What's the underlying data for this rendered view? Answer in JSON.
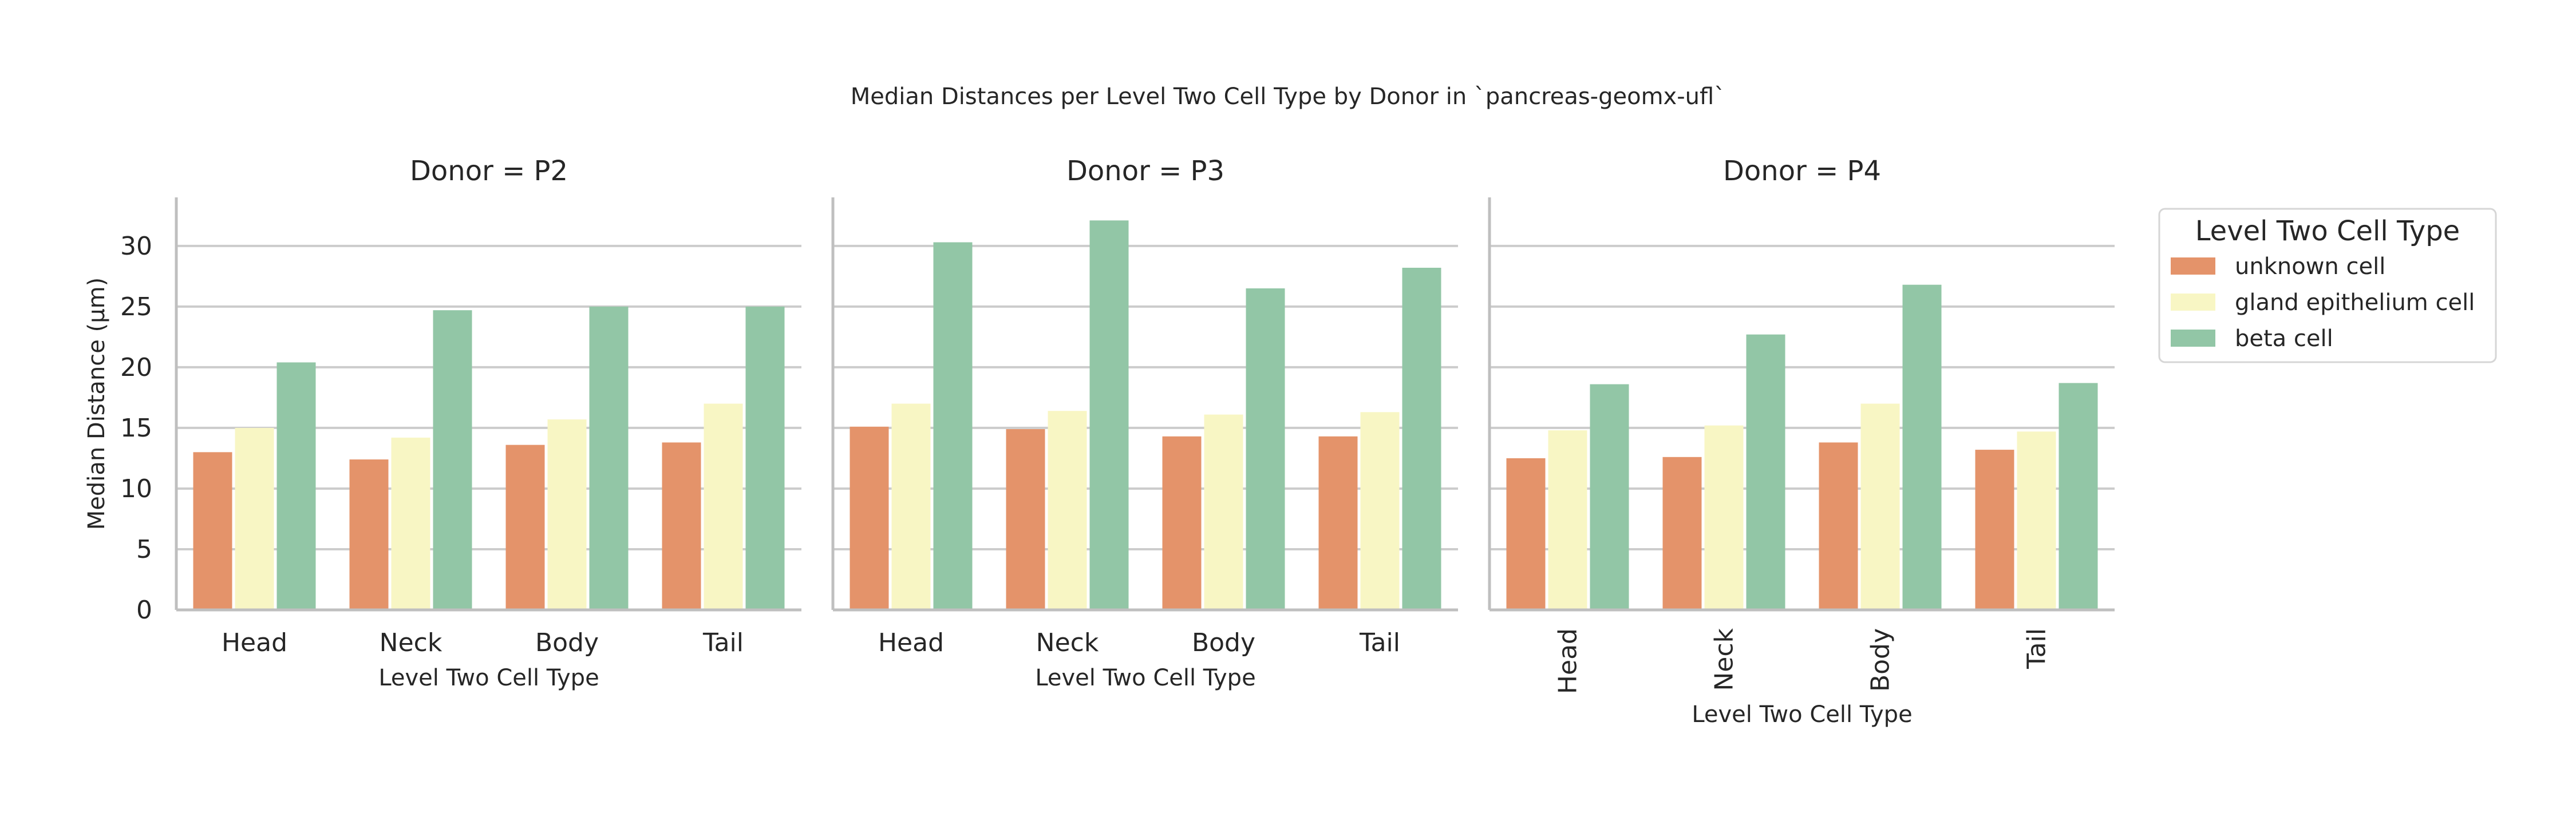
{
  "chart_data": {
    "type": "bar",
    "title": "Median Distances per Level Two Cell Type by Donor in `pancreas-geomx-ufl`",
    "ylabel": "Median Distance (μm)",
    "xlabel": "Level Two Cell Type",
    "ylim": [
      0,
      34
    ],
    "yticks": [
      0,
      5,
      10,
      15,
      20,
      25,
      30
    ],
    "grid": true,
    "legend": {
      "title": "Level Two Cell Type",
      "placement": "right"
    },
    "categories": [
      "Head",
      "Neck",
      "Body",
      "Tail"
    ],
    "series": [
      {
        "name": "unknown cell",
        "color": "#e4936a"
      },
      {
        "name": "gland epithelium cell",
        "color": "#f8f6c4"
      },
      {
        "name": "beta cell",
        "color": "#92c6a6"
      }
    ],
    "panels": [
      {
        "title": "Donor = P2",
        "tick_rotation": 0,
        "values": [
          [
            13.0,
            12.4,
            13.6,
            13.8
          ],
          [
            15.0,
            14.2,
            15.7,
            17.0
          ],
          [
            20.4,
            24.7,
            25.0,
            25.0
          ]
        ]
      },
      {
        "title": "Donor = P3",
        "tick_rotation": 0,
        "values": [
          [
            15.1,
            14.9,
            14.3,
            14.3
          ],
          [
            17.0,
            16.4,
            16.1,
            16.3
          ],
          [
            30.3,
            32.1,
            26.5,
            28.2
          ]
        ]
      },
      {
        "title": "Donor = P4",
        "tick_rotation": -90,
        "values": [
          [
            12.5,
            12.6,
            13.8,
            13.2
          ],
          [
            14.8,
            15.2,
            17.0,
            14.7
          ],
          [
            18.6,
            22.7,
            26.8,
            18.7
          ]
        ]
      }
    ]
  }
}
